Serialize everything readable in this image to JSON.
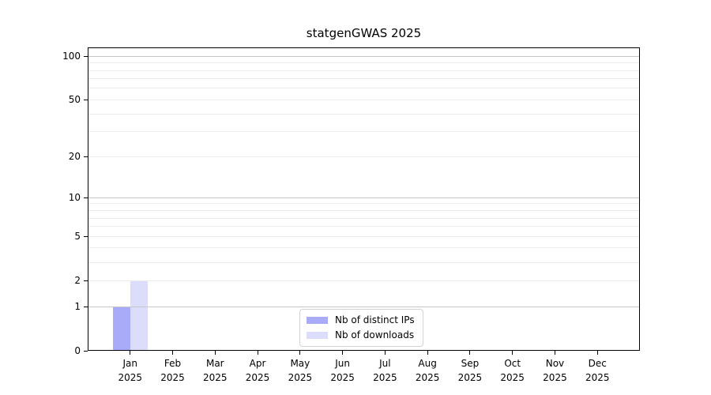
{
  "chart_data": {
    "type": "bar",
    "title": "statgenGWAS 2025",
    "categories": [
      "Jan",
      "Feb",
      "Mar",
      "Apr",
      "May",
      "Jun",
      "Jul",
      "Aug",
      "Sep",
      "Oct",
      "Nov",
      "Dec"
    ],
    "category_year": "2025",
    "series": [
      {
        "name": "Nb of distinct IPs",
        "color": "#aaabf8",
        "values": [
          1,
          0,
          0,
          0,
          0,
          0,
          0,
          0,
          0,
          0,
          0,
          0
        ]
      },
      {
        "name": "Nb of downloads",
        "color": "#dcddfa",
        "values": [
          2,
          0,
          0,
          0,
          0,
          0,
          0,
          0,
          0,
          0,
          0,
          0
        ]
      }
    ],
    "y_scale": "log1p",
    "ylim": [
      0,
      115
    ],
    "y_ticks": [
      0,
      1,
      2,
      5,
      10,
      20,
      50,
      100
    ],
    "y_tick_labels": [
      "0",
      "1",
      "2",
      "5",
      "10",
      "20",
      "50",
      "100"
    ],
    "y_major_gridlines": [
      1,
      10,
      100
    ],
    "y_minor_gridlines": [
      2,
      3,
      4,
      5,
      6,
      7,
      8,
      9,
      20,
      30,
      40,
      50,
      60,
      70,
      80,
      90
    ],
    "grid": true,
    "legend_position": "bottom-center"
  },
  "colors": {
    "background": "#ffffff",
    "text": "#000000",
    "spine": "#000000",
    "tick": "#000000",
    "major_grid": "#c6c6c6",
    "minor_grid": "#ebebeb",
    "legend_border": "#d3d3d3",
    "legend_bg": "#ffffff"
  }
}
